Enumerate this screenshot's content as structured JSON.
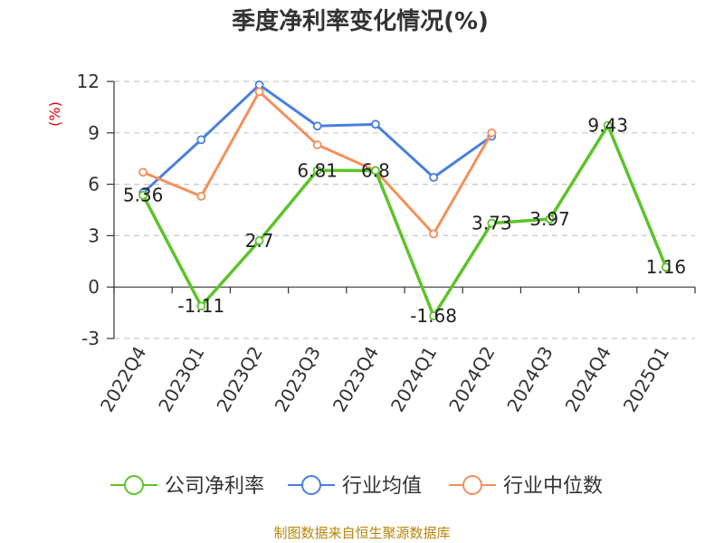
{
  "chart_data": {
    "type": "line",
    "title": "季度净利率变化情况(%)",
    "ylabel": "(%)",
    "categories": [
      "2022Q4",
      "2023Q1",
      "2023Q2",
      "2023Q3",
      "2023Q4",
      "2024Q1",
      "2024Q2",
      "2024Q3",
      "2024Q4",
      "2025Q1"
    ],
    "yticks": [
      -3,
      0,
      3,
      6,
      9,
      12
    ],
    "ylim": [
      -3,
      12
    ],
    "grid": true,
    "legend_position": "bottom",
    "series": [
      {
        "name": "公司净利率",
        "color": "#5cc42a",
        "values": [
          5.36,
          -1.11,
          2.7,
          6.81,
          6.8,
          -1.68,
          3.73,
          3.97,
          9.43,
          1.16
        ],
        "labels": [
          "5.36",
          "-1.11",
          "2.7",
          "6.81",
          "6.8",
          "-1.68",
          "3.73",
          "3.97",
          "9.43",
          "1.16"
        ]
      },
      {
        "name": "行业均值",
        "color": "#4a7fe0",
        "values": [
          5.5,
          8.6,
          11.8,
          9.4,
          9.5,
          6.4,
          8.8,
          null,
          null,
          null
        ]
      },
      {
        "name": "行业中位数",
        "color": "#f4905a",
        "values": [
          6.7,
          5.3,
          11.4,
          8.3,
          6.8,
          3.1,
          9.0,
          null,
          null,
          null
        ]
      }
    ],
    "source": "制图数据来自恒生聚源数据库"
  }
}
